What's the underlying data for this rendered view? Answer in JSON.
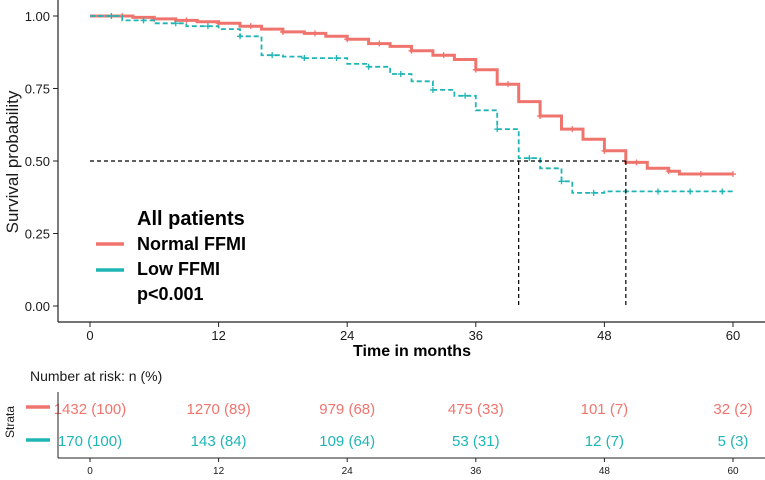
{
  "chart_data": {
    "type": "line",
    "subtype": "kaplan-meier",
    "xlabel": "Time in months",
    "ylabel": "Survival probability",
    "xlim": [
      0,
      60
    ],
    "ylim": [
      0,
      1
    ],
    "x_ticks": [
      "0",
      "12",
      "24",
      "36",
      "48",
      "60"
    ],
    "y_ticks": [
      "0.00",
      "0.25",
      "0.50",
      "0.75",
      "1.00"
    ],
    "legend": {
      "title": "All patients",
      "entries": [
        "Normal FFMI",
        "Low FFMI"
      ],
      "pvalue": "p<0.001",
      "placement": "bottom-left"
    },
    "median_reference": {
      "survival": 0.5,
      "medians": [
        40,
        50
      ]
    },
    "series": [
      {
        "name": "Normal FFMI",
        "color": "#F0746E",
        "dash": "solid",
        "points": [
          [
            0,
            1.0
          ],
          [
            2,
            1.0
          ],
          [
            4,
            0.995
          ],
          [
            6,
            0.99
          ],
          [
            8,
            0.985
          ],
          [
            10,
            0.98
          ],
          [
            12,
            0.975
          ],
          [
            14,
            0.965
          ],
          [
            16,
            0.955
          ],
          [
            18,
            0.945
          ],
          [
            20,
            0.94
          ],
          [
            22,
            0.93
          ],
          [
            24,
            0.92
          ],
          [
            26,
            0.905
          ],
          [
            28,
            0.895
          ],
          [
            30,
            0.88
          ],
          [
            32,
            0.865
          ],
          [
            34,
            0.85
          ],
          [
            36,
            0.815
          ],
          [
            38,
            0.765
          ],
          [
            40,
            0.705
          ],
          [
            42,
            0.655
          ],
          [
            44,
            0.61
          ],
          [
            46,
            0.575
          ],
          [
            48,
            0.535
          ],
          [
            50,
            0.495
          ],
          [
            52,
            0.475
          ],
          [
            54,
            0.465
          ],
          [
            55,
            0.455
          ],
          [
            60,
            0.455
          ]
        ],
        "censor_x": [
          3,
          6,
          9,
          12,
          15,
          18,
          21,
          24,
          27,
          30,
          33,
          36,
          39,
          42,
          45,
          48,
          51,
          54,
          57,
          60
        ]
      },
      {
        "name": "Low FFMI",
        "color": "#1FB5B5",
        "dash": "dashed",
        "points": [
          [
            0,
            1.0
          ],
          [
            3,
            0.985
          ],
          [
            6,
            0.975
          ],
          [
            9,
            0.965
          ],
          [
            12,
            0.955
          ],
          [
            14,
            0.93
          ],
          [
            16,
            0.865
          ],
          [
            18,
            0.86
          ],
          [
            20,
            0.855
          ],
          [
            24,
            0.835
          ],
          [
            26,
            0.825
          ],
          [
            28,
            0.8
          ],
          [
            30,
            0.775
          ],
          [
            32,
            0.745
          ],
          [
            34,
            0.725
          ],
          [
            36,
            0.675
          ],
          [
            38,
            0.61
          ],
          [
            40,
            0.51
          ],
          [
            42,
            0.475
          ],
          [
            44,
            0.43
          ],
          [
            45,
            0.39
          ],
          [
            47,
            0.39
          ],
          [
            48,
            0.395
          ],
          [
            60,
            0.395
          ]
        ],
        "censor_x": [
          2,
          5,
          8,
          11,
          14,
          17,
          20,
          23,
          26,
          29,
          32,
          35,
          38,
          41,
          44,
          47,
          50,
          53,
          56,
          59
        ]
      }
    ]
  },
  "risk_table": {
    "title": "Number at risk: n (%)",
    "strata_label": "Strata",
    "x_ticks": [
      "0",
      "12",
      "24",
      "36",
      "48",
      "60"
    ],
    "rows": [
      {
        "name": "Normal FFMI",
        "color": "#F0746E",
        "values": [
          "1432 (100)",
          "1270 (89)",
          "979 (68)",
          "475 (33)",
          "101 (7)",
          "32 (2)"
        ]
      },
      {
        "name": "Low FFMI",
        "color": "#1FB5B5",
        "values": [
          "170 (100)",
          "143 (84)",
          "109 (64)",
          "53 (31)",
          "12 (7)",
          "5 (3)"
        ]
      }
    ]
  }
}
